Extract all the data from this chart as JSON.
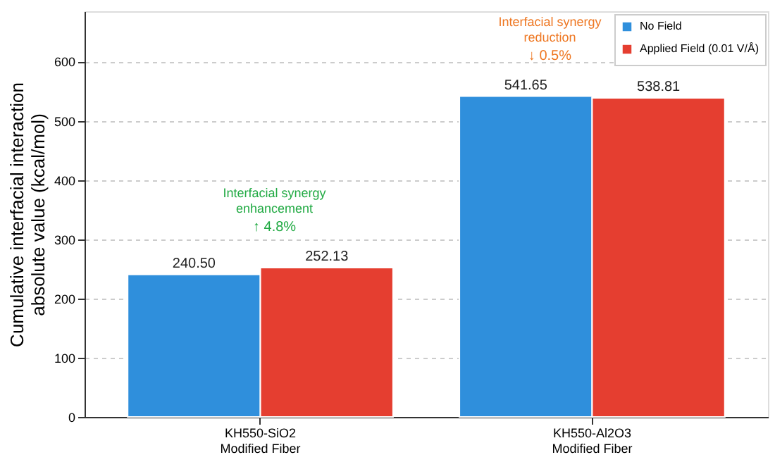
{
  "chart_data": {
    "type": "bar",
    "categories": [
      "KH550-SiO2\nModified Fiber",
      "KH550-Al2O3\nModified Fiber"
    ],
    "ylabel": "Cumulative interfacial interaction\nabsolute value (kcal/mol)",
    "series": [
      {
        "name": "No Field",
        "color": "#2f8fdc",
        "values": [
          240.5,
          541.65
        ],
        "value_labels": [
          "240.50",
          "541.65"
        ]
      },
      {
        "name": "Applied Field (0.01 V/Å)",
        "color": "#e53e30",
        "values": [
          252.13,
          538.81
        ],
        "value_labels": [
          "252.13",
          "538.81"
        ]
      }
    ],
    "ylim": [
      0,
      685
    ],
    "yticks": [
      0,
      100,
      200,
      300,
      400,
      500,
      600
    ],
    "grid": "y",
    "legend": "top right",
    "annotations": [
      "Interfacial synergy\nenhancement",
      "↑ 4.8%",
      "Interfacial synergy\nreduction",
      "↓ 0.5%"
    ]
  }
}
